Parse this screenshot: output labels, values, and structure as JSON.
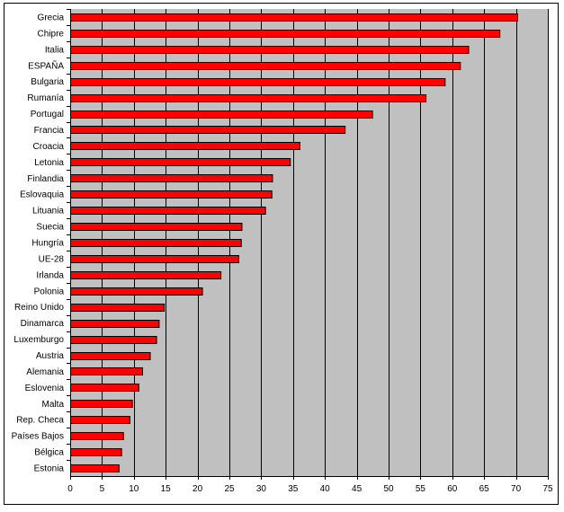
{
  "chart_data": {
    "type": "bar",
    "orientation": "horizontal",
    "categories": [
      "Grecia",
      "Chipre",
      "Italia",
      "ESPAÑA",
      "Bulgaria",
      "Rumanía",
      "Portugal",
      "Francia",
      "Croacia",
      "Letonia",
      "Finlandia",
      "Eslovaquia",
      "Lituania",
      "Suecia",
      "Hungría",
      "UE-28",
      "Irlanda",
      "Polonia",
      "Reino Unido",
      "Dinamarca",
      "Luxemburgo",
      "Austria",
      "Alemania",
      "Eslovenia",
      "Malta",
      "Rep. Checa",
      "Países Bajos",
      "Bélgica",
      "Estonia"
    ],
    "values": [
      70.2,
      67.4,
      62.5,
      61.2,
      58.8,
      55.8,
      47.4,
      43.1,
      36.0,
      34.5,
      31.7,
      31.6,
      30.6,
      26.9,
      26.8,
      26.4,
      23.6,
      20.7,
      14.7,
      13.9,
      13.5,
      12.5,
      11.3,
      10.7,
      9.7,
      9.3,
      8.3,
      8.0,
      7.6
    ],
    "xlim": [
      0,
      75
    ],
    "xticks": [
      0,
      5,
      10,
      15,
      20,
      25,
      30,
      35,
      40,
      45,
      50,
      55,
      60,
      65,
      70,
      75
    ],
    "grid": true,
    "plot_background": "#c0c0c0",
    "bar_color": "#ff0000",
    "bar_edge_color": "#000000",
    "gridline_color": "#000000"
  }
}
